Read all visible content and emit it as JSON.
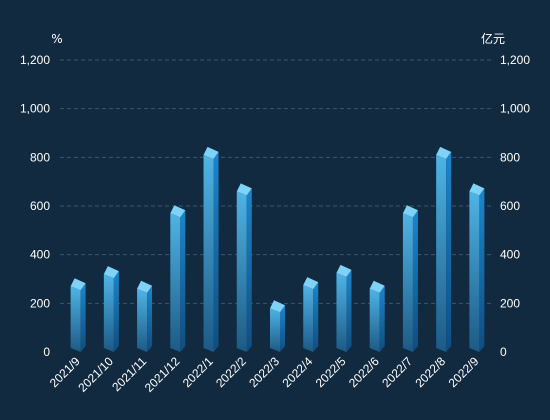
{
  "chart_data": {
    "type": "bar",
    "categories": [
      "2021/9",
      "2021/10",
      "2021/11",
      "2021/12",
      "2022/1",
      "2022/2",
      "2022/3",
      "2022/4",
      "2022/5",
      "2022/6",
      "2022/7",
      "2022/8",
      "2022/9"
    ],
    "values": [
      270,
      320,
      260,
      570,
      810,
      660,
      180,
      275,
      325,
      260,
      570,
      810,
      660
    ],
    "left_axis_unit": "%",
    "right_axis_unit": "亿元",
    "ylim": [
      0,
      1200
    ],
    "yticks": [
      0,
      200,
      400,
      600,
      800,
      1000,
      1200
    ],
    "ytick_labels": [
      "0",
      "200",
      "400",
      "600",
      "800",
      "1,000",
      "1,200"
    ],
    "xtick_labels": [
      "2021/9",
      "2021/10",
      "2021/11",
      "2021/12",
      "2022/1",
      "2022/2",
      "2022/3",
      "2022/4",
      "2022/5",
      "2022/6",
      "2022/7",
      "2022/8",
      "2022/9"
    ],
    "grid": true,
    "colors": {
      "background": "#122a40",
      "grid": "#3a5670",
      "text": "#ffffff",
      "bar_top": "#7fd2f5",
      "bar_front_top": "#4fb4e4",
      "bar_front_bottom": "#1d5a86",
      "bar_side_top": "#1b86cc",
      "bar_side_bottom": "#0f4d80"
    }
  }
}
